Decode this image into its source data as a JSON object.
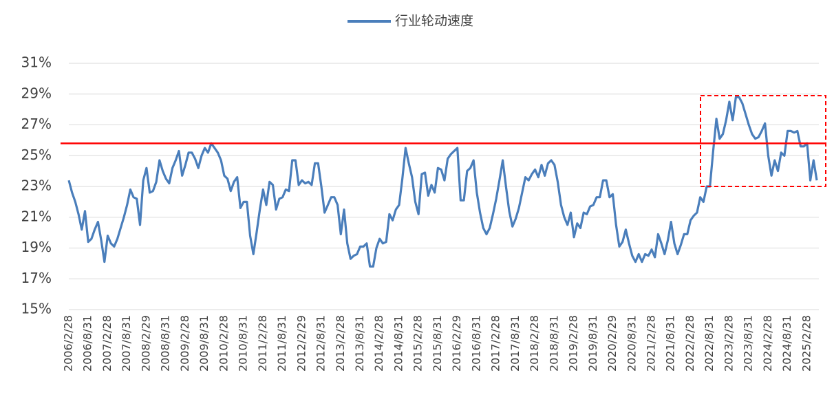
{
  "chart_data": {
    "type": "line",
    "series": [
      {
        "name": "行业轮动速度",
        "color": "#4a7ebb",
        "values": [
          23.4,
          22.6,
          22.0,
          21.2,
          20.2,
          21.4,
          19.4,
          19.6,
          20.2,
          20.7,
          19.5,
          18.1,
          19.8,
          19.3,
          19.1,
          19.6,
          20.3,
          21.0,
          21.8,
          22.8,
          22.3,
          22.2,
          20.5,
          23.4,
          24.2,
          22.6,
          22.7,
          23.3,
          24.7,
          24.0,
          23.5,
          23.2,
          24.2,
          24.7,
          25.3,
          23.7,
          24.4,
          25.2,
          25.2,
          24.8,
          24.2,
          25.0,
          25.5,
          25.2,
          25.8,
          25.5,
          25.2,
          24.7,
          23.7,
          23.5,
          22.7,
          23.3,
          23.6,
          21.6,
          22.0,
          22.0,
          19.8,
          18.6,
          20.0,
          21.5,
          22.8,
          21.8,
          23.3,
          23.1,
          21.5,
          22.2,
          22.3,
          22.8,
          22.7,
          24.7,
          24.7,
          23.1,
          23.4,
          23.2,
          23.3,
          23.1,
          24.5,
          24.5,
          23.0,
          21.3,
          21.8,
          22.3,
          22.3,
          21.8,
          19.9,
          21.5,
          19.3,
          18.3,
          18.5,
          18.6,
          19.1,
          19.1,
          19.3,
          17.8,
          17.8,
          19.0,
          19.6,
          19.3,
          19.4,
          21.2,
          20.8,
          21.5,
          21.8,
          23.5,
          25.5,
          24.5,
          23.6,
          22.0,
          21.2,
          23.8,
          23.9,
          22.4,
          23.1,
          22.6,
          24.2,
          24.1,
          23.4,
          24.8,
          25.1,
          25.3,
          25.5,
          22.1,
          22.1,
          24.0,
          24.2,
          24.7,
          22.6,
          21.3,
          20.3,
          19.9,
          20.3,
          21.2,
          22.2,
          23.4,
          24.7,
          23.0,
          21.4,
          20.4,
          20.9,
          21.6,
          22.6,
          23.6,
          23.4,
          23.8,
          24.1,
          23.6,
          24.4,
          23.7,
          24.5,
          24.7,
          24.4,
          23.3,
          21.8,
          21.0,
          20.5,
          21.3,
          19.7,
          20.6,
          20.3,
          21.3,
          21.2,
          21.7,
          21.8,
          22.3,
          22.3,
          23.4,
          23.4,
          22.3,
          22.5,
          20.5,
          19.1,
          19.4,
          20.2,
          19.3,
          18.5,
          18.1,
          18.6,
          18.1,
          18.6,
          18.5,
          18.9,
          18.4,
          19.9,
          19.3,
          18.6,
          19.5,
          20.7,
          19.3,
          18.6,
          19.2,
          19.9,
          19.9,
          20.8,
          21.1,
          21.3,
          22.3,
          22.0,
          23.0,
          23.0,
          25.3,
          27.4,
          26.1,
          26.4,
          27.3,
          28.5,
          27.3,
          28.8,
          28.8,
          28.4,
          27.7,
          27.0,
          26.4,
          26.1,
          26.2,
          26.6,
          27.1,
          25.0,
          23.7,
          24.7,
          24.0,
          25.2,
          25.0,
          26.6,
          26.6,
          26.5,
          26.6,
          25.6,
          25.6,
          25.8,
          23.4,
          24.7,
          23.4
        ]
      }
    ],
    "categories": [
      "2006/2/28",
      null,
      null,
      null,
      null,
      null,
      "2006/8/31",
      null,
      null,
      null,
      null,
      null,
      "2007/2/28",
      null,
      null,
      null,
      null,
      null,
      "2007/8/31",
      null,
      null,
      null,
      null,
      null,
      "2008/2/29",
      null,
      null,
      null,
      null,
      null,
      "2008/8/31",
      null,
      null,
      null,
      null,
      null,
      "2009/2/28",
      null,
      null,
      null,
      null,
      null,
      "2009/8/31",
      null,
      null,
      null,
      null,
      null,
      "2010/2/28",
      null,
      null,
      null,
      null,
      null,
      "2010/8/31",
      null,
      null,
      null,
      null,
      null,
      "2011/2/28",
      null,
      null,
      null,
      null,
      null,
      "2011/8/31",
      null,
      null,
      null,
      null,
      null,
      "2012/2/29",
      null,
      null,
      null,
      null,
      null,
      "2012/8/31",
      null,
      null,
      null,
      null,
      null,
      "2013/2/28",
      null,
      null,
      null,
      null,
      null,
      "2013/8/31",
      null,
      null,
      null,
      null,
      null,
      "2014/2/28",
      null,
      null,
      null,
      null,
      null,
      "2014/8/31",
      null,
      null,
      null,
      null,
      null,
      "2015/2/28",
      null,
      null,
      null,
      null,
      null,
      "2015/8/31",
      null,
      null,
      null,
      null,
      null,
      "2016/2/29",
      null,
      null,
      null,
      null,
      null,
      "2016/8/31",
      null,
      null,
      null,
      null,
      null,
      "2017/2/28",
      null,
      null,
      null,
      null,
      null,
      "2017/8/31",
      null,
      null,
      null,
      null,
      null,
      "2018/2/28",
      null,
      null,
      null,
      null,
      null,
      "2018/8/31",
      null,
      null,
      null,
      null,
      null,
      "2019/2/28",
      null,
      null,
      null,
      null,
      null,
      "2019/8/31",
      null,
      null,
      null,
      null,
      null,
      "2020/2/29",
      null,
      null,
      null,
      null,
      null,
      "2020/8/31",
      null,
      null,
      null,
      null,
      null,
      "2021/2/28",
      null,
      null,
      null,
      null,
      null,
      "2021/8/31",
      null,
      null,
      null,
      null,
      null,
      "2022/2/28",
      null,
      null,
      null,
      null,
      null,
      "2022/8/31",
      null,
      null,
      null,
      null,
      null,
      "2023/2/28",
      null,
      null,
      null,
      null,
      null,
      "2023/8/31",
      null,
      null,
      null,
      null,
      null,
      "2024/2/28",
      null,
      null,
      null,
      null,
      null,
      "2024/8/31",
      null,
      null,
      null,
      null,
      null,
      "2025/2/28",
      null,
      null,
      null
    ],
    "ylim": [
      15,
      31
    ],
    "yticks": [
      {
        "value": 15,
        "label": "15%"
      },
      {
        "value": 17,
        "label": "17%"
      },
      {
        "value": 19,
        "label": "19%"
      },
      {
        "value": 21,
        "label": "21%"
      },
      {
        "value": 23,
        "label": "23%"
      },
      {
        "value": 25,
        "label": "25%"
      },
      {
        "value": 27,
        "label": "27%"
      },
      {
        "value": 29,
        "label": "29%"
      },
      {
        "value": 31,
        "label": "31%"
      }
    ],
    "grid": true,
    "reference_line": {
      "value": 25.8,
      "color": "#ff0000"
    },
    "highlight_box": {
      "ylim": [
        23.0,
        28.9
      ],
      "color": "#ff0000"
    },
    "legend": "top"
  }
}
